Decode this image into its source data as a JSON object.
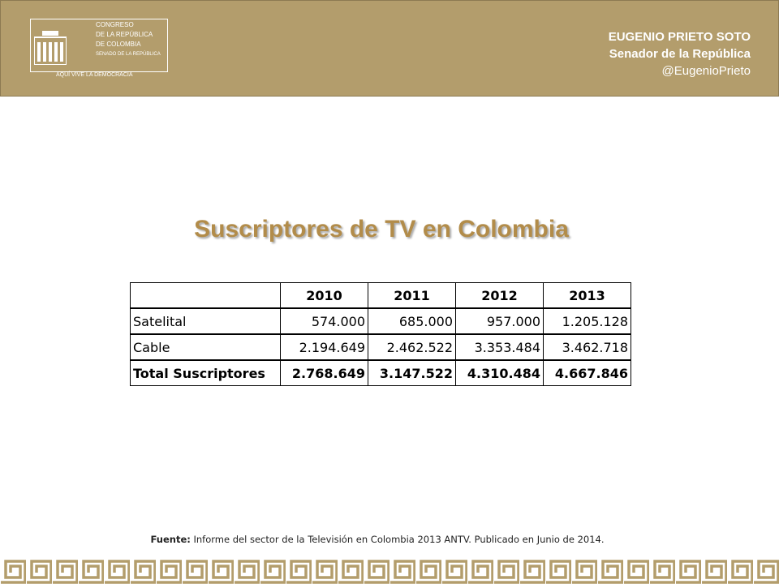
{
  "header": {
    "logo": {
      "lines": [
        "CONGRESO",
        "DE LA REPÚBLICA",
        "DE COLOMBIA"
      ],
      "subline": "SENADO DE LA REPÚBLICA",
      "motto": "AQUÍ VIVE LA DEMOCRACIA"
    },
    "name": "EUGENIO PRIETO SOTO",
    "role": "Senador de la República",
    "handle": "@EugenioPrieto"
  },
  "title": "Suscriptores de TV en Colombia",
  "table": {
    "columns": [
      "2010",
      "2011",
      "2012",
      "2013"
    ],
    "rows": [
      [
        "Satelital",
        "574.000",
        "685.000",
        "957.000",
        "1.205.128"
      ],
      [
        "Cable",
        "2.194.649",
        "2.462.522",
        "3.353.484",
        "3.462.718"
      ],
      [
        "Total Suscriptores",
        "2.768.649",
        "3.147.522",
        "4.310.484",
        "4.667.846"
      ]
    ]
  },
  "source": {
    "label": "Fuente:",
    "text": "Informe del sector de la Televisión en Colombia 2013 ANTV. Publicado en Junio de 2014."
  }
}
